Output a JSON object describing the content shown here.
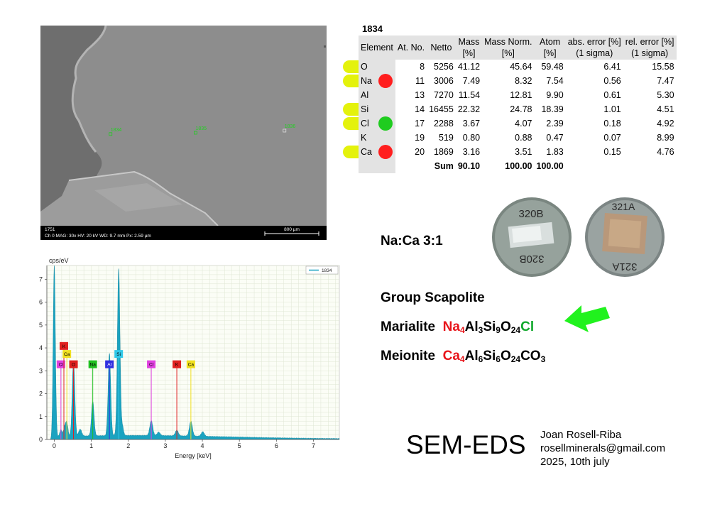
{
  "sem": {
    "points": [
      {
        "label": "1834",
        "nx": 0.245,
        "ny": 0.506
      },
      {
        "label": "1835",
        "nx": 0.542,
        "ny": 0.5
      },
      {
        "label": "1836",
        "nx": 0.853,
        "ny": 0.49
      }
    ],
    "footer": {
      "id": "1751",
      "info": "Ch 0   MAG: 30x   HV: 20 kV   WD: 9.7 mm   Px: 2.59 µm",
      "scale_label": "800 µm"
    }
  },
  "table": {
    "title": "1834",
    "headers": [
      {
        "l1": "Element",
        "l2": ""
      },
      {
        "l1": "At. No.",
        "l2": ""
      },
      {
        "l1": "Netto",
        "l2": ""
      },
      {
        "l1": "Mass",
        "l2": "[%]"
      },
      {
        "l1": "Mass Norm.",
        "l2": "[%]"
      },
      {
        "l1": "Atom",
        "l2": "[%]"
      },
      {
        "l1": "abs. error [%]",
        "l2": "(1 sigma)"
      },
      {
        "l1": "rel. error [%]",
        "l2": "(1 sigma)"
      }
    ],
    "rows": [
      {
        "el": "O",
        "atno": "8",
        "netto": "5256",
        "mass": "41.12",
        "norm": "45.64",
        "atom": "59.48",
        "abs": "6.41",
        "rel": "15.58",
        "tag": "yellow",
        "dot": ""
      },
      {
        "el": "Na",
        "atno": "11",
        "netto": "3006",
        "mass": "7.49",
        "norm": "8.32",
        "atom": "7.54",
        "abs": "0.56",
        "rel": "7.47",
        "tag": "yellow",
        "dot": "red"
      },
      {
        "el": "Al",
        "atno": "13",
        "netto": "7270",
        "mass": "11.54",
        "norm": "12.81",
        "atom": "9.90",
        "abs": "0.61",
        "rel": "5.30",
        "tag": "",
        "dot": ""
      },
      {
        "el": "Si",
        "atno": "14",
        "netto": "16455",
        "mass": "22.32",
        "norm": "24.78",
        "atom": "18.39",
        "abs": "1.01",
        "rel": "4.51",
        "tag": "yellow",
        "dot": ""
      },
      {
        "el": "Cl",
        "atno": "17",
        "netto": "2288",
        "mass": "3.67",
        "norm": "4.07",
        "atom": "2.39",
        "abs": "0.18",
        "rel": "4.92",
        "tag": "yellow",
        "dot": "green"
      },
      {
        "el": "K",
        "atno": "19",
        "netto": "519",
        "mass": "0.80",
        "norm": "0.88",
        "atom": "0.47",
        "abs": "0.07",
        "rel": "8.99",
        "tag": "",
        "dot": ""
      },
      {
        "el": "Ca",
        "atno": "20",
        "netto": "1869",
        "mass": "3.16",
        "norm": "3.51",
        "atom": "1.83",
        "abs": "0.15",
        "rel": "4.76",
        "tag": "yellow",
        "dot": "red"
      }
    ],
    "sum": {
      "label": "Sum",
      "mass": "90.10",
      "norm": "100.00",
      "atom": "100.00"
    }
  },
  "ratio": "Na:Ca  3:1",
  "photos": {
    "left_label": "320B",
    "right_label": "321A"
  },
  "group": "Group Scapolite",
  "marialite": {
    "name": "Marialite",
    "parts": [
      {
        "t": "Na",
        "sub": "4",
        "c": "red"
      },
      {
        "t": "Al",
        "sub": "3",
        "c": ""
      },
      {
        "t": "Si",
        "sub": "9",
        "c": ""
      },
      {
        "t": "O",
        "sub": "24",
        "c": ""
      },
      {
        "t": "Cl",
        "sub": "",
        "c": "green"
      }
    ]
  },
  "meionite": {
    "name": "Meionite",
    "parts": [
      {
        "t": "Ca",
        "sub": "4",
        "c": "red"
      },
      {
        "t": "Al",
        "sub": "6",
        "c": ""
      },
      {
        "t": "Si",
        "sub": "6",
        "c": ""
      },
      {
        "t": "O",
        "sub": "24",
        "c": ""
      },
      {
        "t": "CO",
        "sub": "3",
        "c": ""
      }
    ]
  },
  "method": "SEM-EDS",
  "author": {
    "name": "Joan Rosell-Riba",
    "email": "rosellminerals@gmail.com",
    "date": "2025, 10th july"
  },
  "chart_data": {
    "type": "area",
    "ylabel": "cps/eV",
    "xlabel": "Energy [keV]",
    "xlim": [
      -0.2,
      7.7
    ],
    "ylim": [
      0,
      7.6
    ],
    "xticks": [
      0,
      1,
      2,
      3,
      4,
      5,
      6,
      7
    ],
    "yticks": [
      0,
      1,
      2,
      3,
      4,
      5,
      6,
      7
    ],
    "grid": true,
    "legend": {
      "position": "top-right",
      "entries": [
        "1834"
      ]
    },
    "series": [
      {
        "name": "1834",
        "color": "#1aa3c0"
      }
    ],
    "baseline": 0.15,
    "peaks": [
      {
        "e": 0.0,
        "h": 7.6,
        "w": 0.03
      },
      {
        "e": 0.18,
        "h": 0.3,
        "w": 0.03
      },
      {
        "e": 0.28,
        "h": 0.4,
        "w": 0.03
      },
      {
        "e": 0.34,
        "h": 0.6,
        "w": 0.03
      },
      {
        "e": 0.52,
        "h": 3.3,
        "w": 0.035
      },
      {
        "e": 0.7,
        "h": 0.3,
        "w": 0.04
      },
      {
        "e": 1.04,
        "h": 1.5,
        "w": 0.035
      },
      {
        "e": 1.49,
        "h": 3.6,
        "w": 0.035
      },
      {
        "e": 1.74,
        "h": 7.3,
        "w": 0.035
      },
      {
        "e": 1.84,
        "h": 0.4,
        "w": 0.03
      },
      {
        "e": 2.62,
        "h": 0.65,
        "w": 0.04
      },
      {
        "e": 2.82,
        "h": 0.15,
        "w": 0.04
      },
      {
        "e": 3.31,
        "h": 0.25,
        "w": 0.04
      },
      {
        "e": 3.69,
        "h": 0.65,
        "w": 0.04
      },
      {
        "e": 4.01,
        "h": 0.2,
        "w": 0.04
      }
    ],
    "element_markers": [
      {
        "el": "Cl",
        "e": 0.18,
        "top": 3.3,
        "color": "#e040e0"
      },
      {
        "el": "K",
        "e": 0.26,
        "top": 4.1,
        "color": "#e02020"
      },
      {
        "el": "Ca",
        "e": 0.34,
        "top": 3.75,
        "color": "#f0e020"
      },
      {
        "el": "O",
        "e": 0.52,
        "top": 3.3,
        "color": "#e02020"
      },
      {
        "el": "Na",
        "e": 1.04,
        "top": 3.3,
        "color": "#20c020"
      },
      {
        "el": "Al",
        "e": 1.49,
        "top": 3.3,
        "color": "#3030e0"
      },
      {
        "el": "Si",
        "e": 1.74,
        "top": 3.75,
        "color": "#30c8e8"
      },
      {
        "el": "Cl",
        "e": 2.62,
        "top": 3.3,
        "color": "#e040e0"
      },
      {
        "el": "K",
        "e": 3.31,
        "top": 3.3,
        "color": "#e02020"
      },
      {
        "el": "Ca",
        "e": 3.69,
        "top": 3.3,
        "color": "#f0e020"
      }
    ]
  }
}
